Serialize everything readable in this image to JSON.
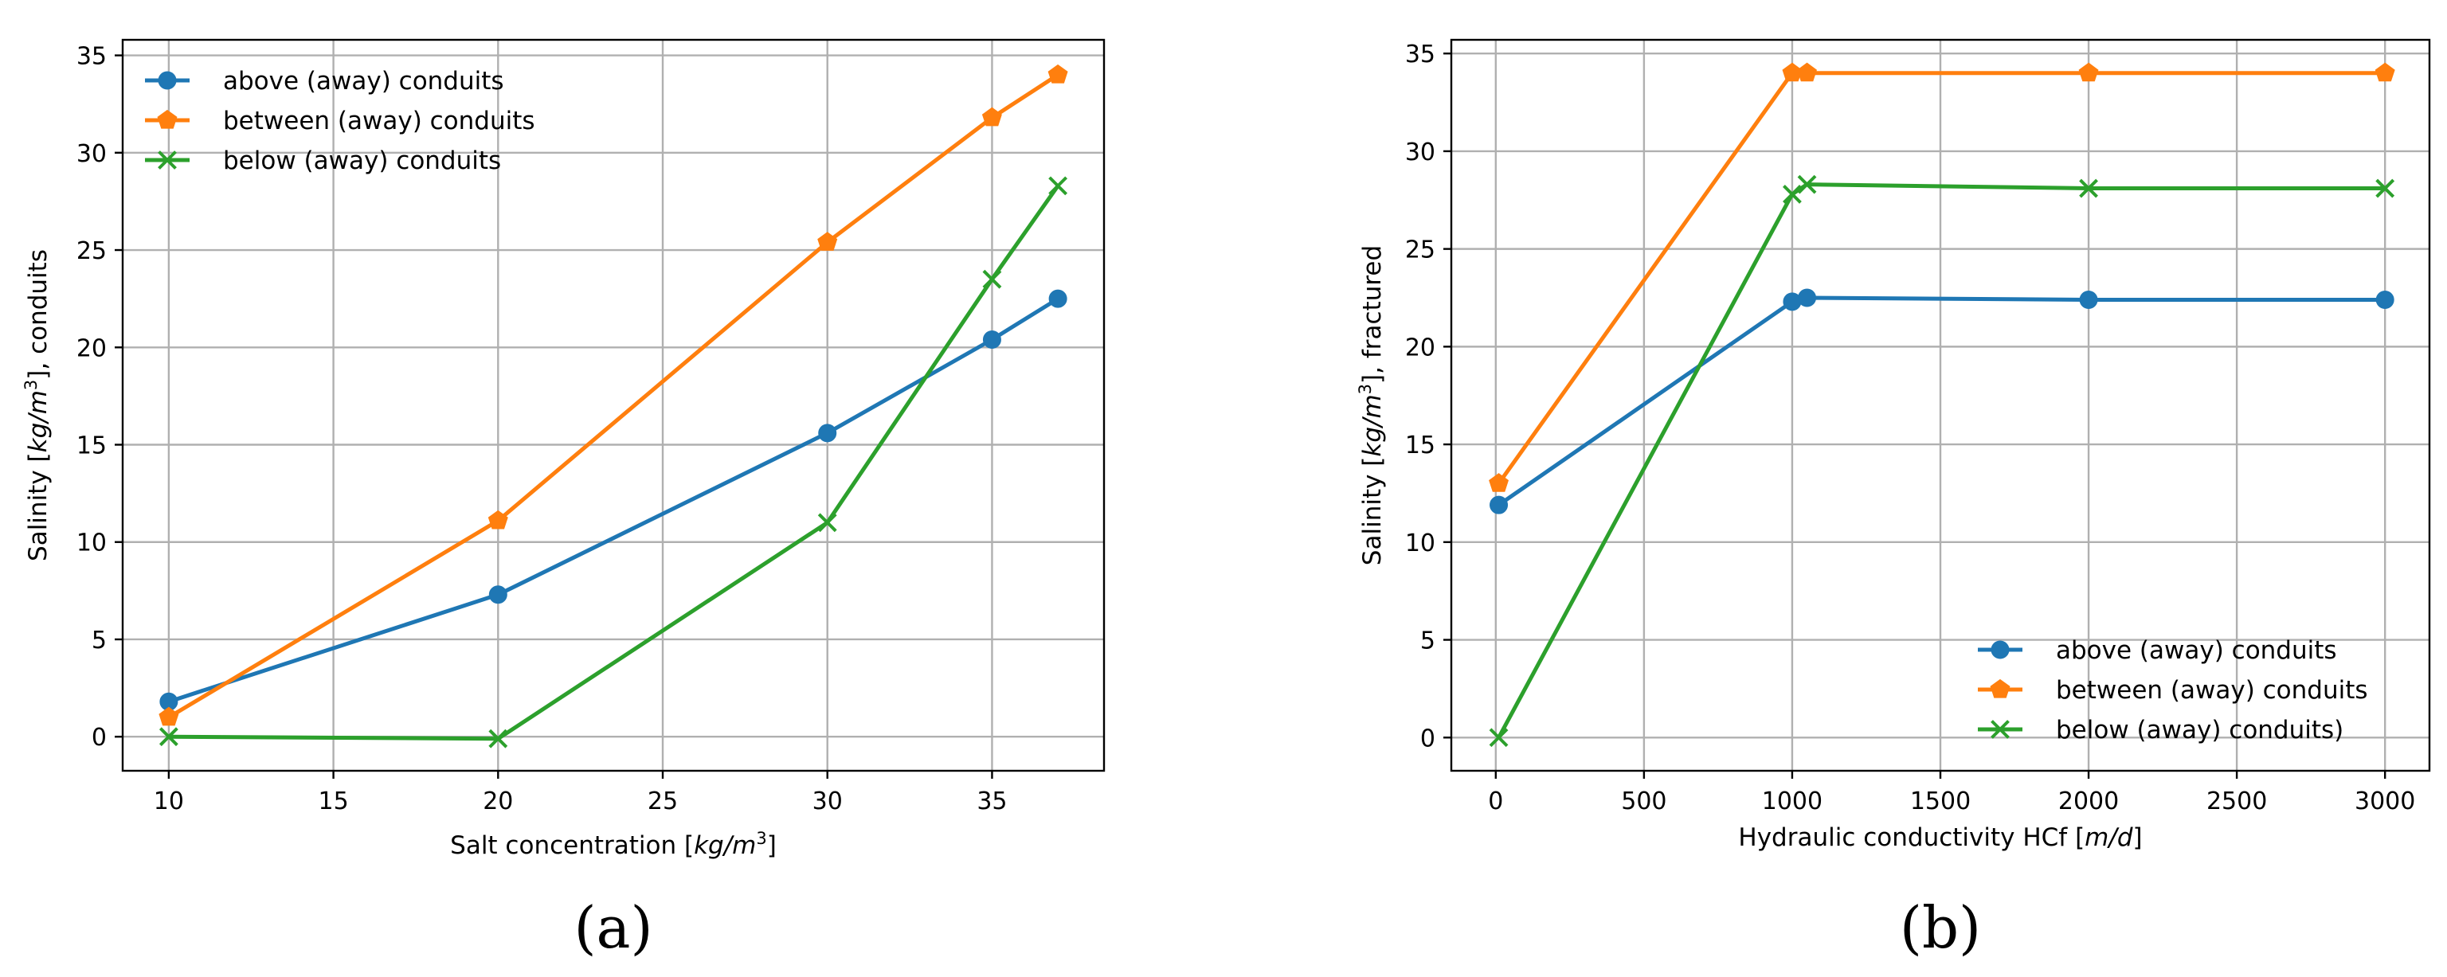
{
  "chart_data": [
    {
      "type": "line",
      "panel_label": "(a)",
      "xlabel_prefix": "Salt concentration [",
      "xlabel_unit": "kg/m",
      "xlabel_sup": "3",
      "xlabel_suffix": "]",
      "ylabel_prefix": "Salinity [",
      "ylabel_unit": "kg/m",
      "ylabel_sup": "3",
      "ylabel_suffix": "], conduits",
      "xlim": [
        8.6,
        38.4
      ],
      "ylim": [
        -1.75,
        35.8
      ],
      "xticks": [
        10,
        15,
        20,
        25,
        30,
        35
      ],
      "yticks": [
        0,
        5,
        10,
        15,
        20,
        25,
        30,
        35
      ],
      "grid": true,
      "legend_position": "upper-left",
      "series": [
        {
          "name": "above (away) conduits",
          "color": "#1f77b4",
          "marker": "circle",
          "x": [
            10,
            20,
            30,
            35,
            37
          ],
          "y": [
            1.8,
            7.3,
            15.6,
            20.4,
            22.5
          ]
        },
        {
          "name": "between (away) conduits",
          "color": "#ff7f0e",
          "marker": "pentagon",
          "x": [
            10,
            20,
            30,
            35,
            37
          ],
          "y": [
            1.0,
            11.1,
            25.4,
            31.8,
            34.0
          ]
        },
        {
          "name": "below (away) conduits",
          "color": "#2ca02c",
          "marker": "x",
          "x": [
            10,
            20,
            30,
            35,
            37
          ],
          "y": [
            0.0,
            -0.1,
            11.0,
            23.5,
            28.3
          ]
        }
      ]
    },
    {
      "type": "line",
      "panel_label": "(b)",
      "xlabel_prefix": "Hydraulic conductivity HCf [",
      "xlabel_unit": "m/d",
      "xlabel_sup": "",
      "xlabel_suffix": "]",
      "ylabel_prefix": "Salinity [",
      "ylabel_unit": "kg/m",
      "ylabel_sup": "3",
      "ylabel_suffix": "], fractured",
      "xlim": [
        -150,
        3150
      ],
      "ylim": [
        -1.7,
        35.7
      ],
      "xticks": [
        0,
        500,
        1000,
        1500,
        2000,
        2500,
        3000
      ],
      "yticks": [
        0,
        5,
        10,
        15,
        20,
        25,
        30,
        35
      ],
      "grid": true,
      "legend_position": "lower-right",
      "series": [
        {
          "name": "above (away) conduits",
          "color": "#1f77b4",
          "marker": "circle",
          "x": [
            10,
            1000,
            1050,
            2000,
            3000
          ],
          "y": [
            11.9,
            22.3,
            22.5,
            22.4,
            22.4
          ]
        },
        {
          "name": "between (away) conduits",
          "color": "#ff7f0e",
          "marker": "pentagon",
          "x": [
            10,
            1000,
            1050,
            2000,
            3000
          ],
          "y": [
            13.0,
            34.0,
            34.0,
            34.0,
            34.0
          ]
        },
        {
          "name": "below (away) conduits)",
          "color": "#2ca02c",
          "marker": "x",
          "x": [
            10,
            1000,
            1050,
            2000,
            3000
          ],
          "y": [
            0.0,
            27.8,
            28.3,
            28.1,
            28.1
          ]
        }
      ]
    }
  ]
}
